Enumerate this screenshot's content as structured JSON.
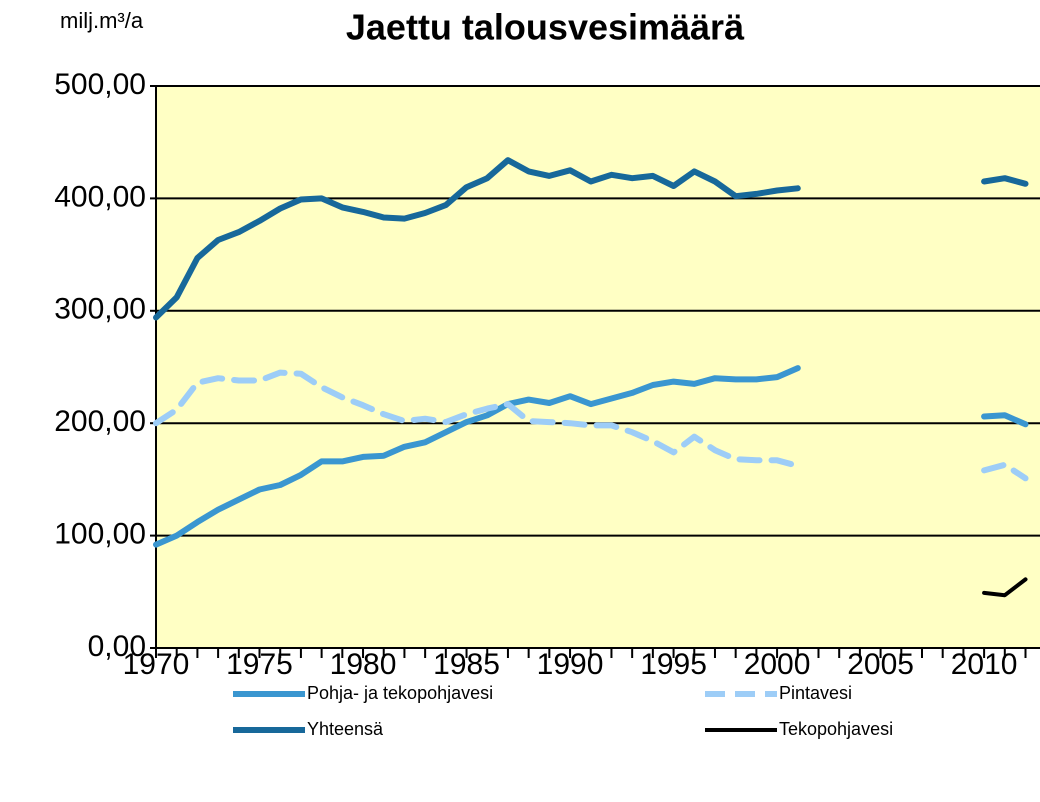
{
  "chart_data": {
    "type": "line",
    "title": "Jaettu talousvesimäärä",
    "y_label": "milj.m³/a",
    "x": [
      1970,
      1971,
      1972,
      1973,
      1974,
      1975,
      1976,
      1977,
      1978,
      1979,
      1980,
      1981,
      1982,
      1983,
      1984,
      1985,
      1986,
      1987,
      1988,
      1989,
      1990,
      1991,
      1992,
      1993,
      1994,
      1995,
      1996,
      1997,
      1998,
      1999,
      2000,
      2001,
      2002,
      2003,
      2004,
      2005,
      2006,
      2007,
      2008,
      2009,
      2010,
      2011,
      2012
    ],
    "series": [
      {
        "name": "Pohja- ja tekopohjavesi",
        "color": "#3a96d0",
        "dash": false,
        "values": [
          92,
          100,
          112,
          123,
          132,
          141,
          145,
          154,
          166,
          166,
          170,
          171,
          179,
          183,
          192,
          201,
          207,
          217,
          221,
          218,
          224,
          217,
          222,
          227,
          234,
          237,
          235,
          240,
          239,
          239,
          241,
          249,
          null,
          null,
          null,
          null,
          null,
          null,
          null,
          null,
          206,
          207,
          199
        ]
      },
      {
        "name": "Pintavesi",
        "color": "#9dcdf7",
        "dash": true,
        "values": [
          200,
          212,
          236,
          240,
          238,
          238,
          245,
          244,
          232,
          223,
          216,
          208,
          202,
          204,
          201,
          208,
          213,
          217,
          202,
          201,
          200,
          198,
          198,
          192,
          184,
          174,
          188,
          176,
          168,
          167,
          167,
          162,
          null,
          null,
          null,
          null,
          null,
          null,
          null,
          null,
          158,
          163,
          151
        ]
      },
      {
        "name": "Yhteensä",
        "color": "#17689a",
        "dash": false,
        "values": [
          294,
          312,
          347,
          363,
          370,
          380,
          391,
          399,
          400,
          392,
          388,
          383,
          382,
          387,
          394,
          410,
          418,
          434,
          424,
          420,
          425,
          415,
          421,
          418,
          420,
          411,
          424,
          415,
          402,
          404,
          407,
          409,
          null,
          null,
          null,
          null,
          null,
          null,
          null,
          null,
          415,
          418,
          413
        ]
      },
      {
        "name": "Tekopohjavesi",
        "color": "#000000",
        "dash": false,
        "values": [
          null,
          null,
          null,
          null,
          null,
          null,
          null,
          null,
          null,
          null,
          null,
          null,
          null,
          null,
          null,
          null,
          null,
          null,
          null,
          null,
          null,
          null,
          null,
          null,
          null,
          null,
          null,
          null,
          null,
          null,
          null,
          null,
          null,
          null,
          null,
          null,
          null,
          null,
          null,
          null,
          49,
          47,
          61
        ]
      }
    ],
    "xlim": [
      1970,
      2012.7
    ],
    "xticks": [
      1970,
      1975,
      1980,
      1985,
      1990,
      1995,
      2000,
      2005,
      2010
    ],
    "ylim": [
      0,
      500
    ],
    "yticks": [
      {
        "value": 0,
        "label": "0,00"
      },
      {
        "value": 100,
        "label": "100,00"
      },
      {
        "value": 200,
        "label": "200,00"
      },
      {
        "value": 300,
        "label": "300,00"
      },
      {
        "value": 400,
        "label": "400,00"
      },
      {
        "value": 500,
        "label": "500,00"
      }
    ],
    "grid": true,
    "plot_background": "#ffffc4",
    "legend": "bottom"
  }
}
